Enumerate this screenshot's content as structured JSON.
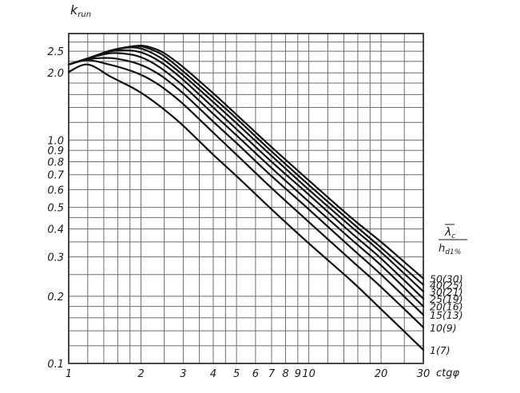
{
  "chart_data": {
    "type": "line",
    "title": "",
    "ylabel": "k",
    "ylabel_sub": "run",
    "xlabel": "ctgφ",
    "legend_title_top": "λ",
    "legend_title_top_sub": "c",
    "legend_title_bottom": "h",
    "legend_title_bottom_sub": "d1%",
    "x_scale": "log",
    "y_scale": "log",
    "xlim": [
      1,
      30
    ],
    "ylim": [
      0.1,
      3.0
    ],
    "grid": true,
    "x_grid": [
      1,
      1.2,
      1.4,
      1.6,
      1.8,
      2,
      2.5,
      3,
      3.5,
      4,
      4.5,
      5,
      6,
      7,
      8,
      9,
      10,
      12,
      14,
      16,
      18,
      20,
      25,
      30
    ],
    "y_grid": [
      0.1,
      0.12,
      0.14,
      0.16,
      0.18,
      0.2,
      0.25,
      0.3,
      0.35,
      0.4,
      0.45,
      0.5,
      0.6,
      0.7,
      0.8,
      0.9,
      1.0,
      1.2,
      1.4,
      1.6,
      1.8,
      2.0,
      2.25,
      2.5,
      2.75
    ],
    "x_ticks": [
      {
        "value": 1,
        "label": "1"
      },
      {
        "value": 2,
        "label": "2"
      },
      {
        "value": 3,
        "label": "3"
      },
      {
        "value": 4,
        "label": "4"
      },
      {
        "value": 5,
        "label": "5"
      },
      {
        "value": 6,
        "label": "6"
      },
      {
        "value": 7,
        "label": "7"
      },
      {
        "value": 8,
        "label": "8"
      },
      {
        "value": 9,
        "label": "9"
      },
      {
        "value": 10,
        "label": "10"
      },
      {
        "value": 20,
        "label": "20"
      },
      {
        "value": 30,
        "label": "30"
      }
    ],
    "y_ticks": [
      {
        "value": 2.5,
        "label": "2.5"
      },
      {
        "value": 2.0,
        "label": "2.0"
      },
      {
        "value": 1.0,
        "label": "1.0"
      },
      {
        "value": 0.9,
        "label": "0.9"
      },
      {
        "value": 0.8,
        "label": "0.8"
      },
      {
        "value": 0.7,
        "label": "0.7"
      },
      {
        "value": 0.6,
        "label": "0.6"
      },
      {
        "value": 0.5,
        "label": "0.5"
      },
      {
        "value": 0.4,
        "label": "0.4"
      },
      {
        "value": 0.3,
        "label": "0.3"
      },
      {
        "value": 0.2,
        "label": "0.2"
      },
      {
        "value": 0.1,
        "label": "0.1"
      }
    ],
    "series": [
      {
        "name": "50(30)",
        "x": [
          1,
          1.2,
          1.5,
          1.8,
          2.0,
          2.2,
          2.5,
          3,
          4,
          5,
          7,
          10,
          15,
          20,
          30
        ],
        "y": [
          2.18,
          2.32,
          2.52,
          2.62,
          2.65,
          2.6,
          2.45,
          2.12,
          1.62,
          1.3,
          0.93,
          0.66,
          0.45,
          0.35,
          0.24
        ]
      },
      {
        "name": "40(25)",
        "x": [
          1,
          1.2,
          1.5,
          1.8,
          2.0,
          2.2,
          2.5,
          3,
          4,
          5,
          7,
          10,
          15,
          20,
          30
        ],
        "y": [
          2.18,
          2.32,
          2.52,
          2.62,
          2.63,
          2.55,
          2.38,
          2.03,
          1.55,
          1.25,
          0.89,
          0.63,
          0.43,
          0.33,
          0.225
        ]
      },
      {
        "name": "30(21)",
        "x": [
          1,
          1.2,
          1.5,
          1.8,
          2.0,
          2.2,
          2.5,
          3,
          4,
          5,
          7,
          10,
          15,
          20,
          30
        ],
        "y": [
          2.18,
          2.32,
          2.52,
          2.6,
          2.57,
          2.47,
          2.28,
          1.95,
          1.48,
          1.19,
          0.85,
          0.6,
          0.41,
          0.315,
          0.21
        ]
      },
      {
        "name": "25(19)",
        "x": [
          1,
          1.2,
          1.5,
          1.8,
          2.0,
          2.2,
          2.5,
          3,
          4,
          5,
          7,
          10,
          15,
          20,
          30
        ],
        "y": [
          2.18,
          2.32,
          2.5,
          2.52,
          2.47,
          2.37,
          2.18,
          1.86,
          1.4,
          1.12,
          0.8,
          0.57,
          0.385,
          0.295,
          0.195
        ]
      },
      {
        "name": "20(16)",
        "x": [
          1,
          1.2,
          1.5,
          1.8,
          2.0,
          2.2,
          2.5,
          3,
          4,
          5,
          7,
          10,
          15,
          20,
          30
        ],
        "y": [
          2.18,
          2.32,
          2.45,
          2.42,
          2.35,
          2.24,
          2.05,
          1.75,
          1.31,
          1.05,
          0.75,
          0.53,
          0.36,
          0.275,
          0.18
        ]
      },
      {
        "name": "15(13)",
        "x": [
          1,
          1.2,
          1.5,
          1.8,
          2.0,
          2.2,
          2.5,
          3,
          4,
          5,
          7,
          10,
          15,
          20,
          30
        ],
        "y": [
          2.18,
          2.3,
          2.33,
          2.25,
          2.17,
          2.07,
          1.9,
          1.62,
          1.21,
          0.97,
          0.69,
          0.49,
          0.33,
          0.25,
          0.165
        ]
      },
      {
        "name": "10(9)",
        "x": [
          1,
          1.2,
          1.5,
          1.8,
          2.0,
          2.2,
          2.5,
          3,
          4,
          5,
          7,
          10,
          15,
          20,
          30
        ],
        "y": [
          2.18,
          2.28,
          2.17,
          2.05,
          1.96,
          1.86,
          1.7,
          1.45,
          1.08,
          0.86,
          0.61,
          0.43,
          0.29,
          0.22,
          0.145
        ]
      },
      {
        "name": "1(7)",
        "x": [
          1,
          1.2,
          1.5,
          1.8,
          2.0,
          2.2,
          2.5,
          3,
          4,
          5,
          7,
          10,
          15,
          20,
          30
        ],
        "y": [
          2.02,
          2.18,
          1.92,
          1.74,
          1.63,
          1.52,
          1.37,
          1.16,
          0.86,
          0.69,
          0.49,
          0.345,
          0.235,
          0.175,
          0.115
        ]
      }
    ]
  }
}
